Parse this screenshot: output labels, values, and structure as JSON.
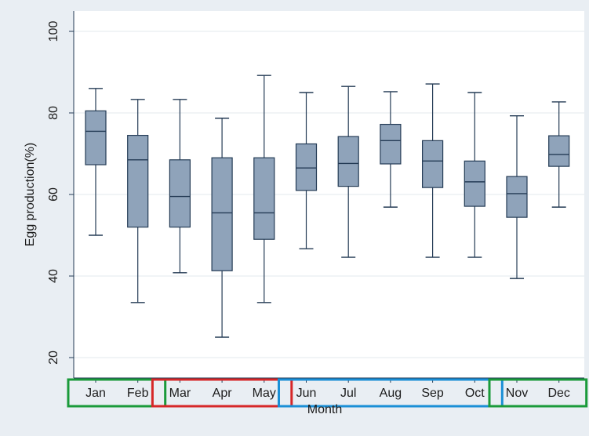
{
  "chart_data": {
    "type": "boxplot",
    "title": "",
    "xlabel": "Month",
    "ylabel": "Egg production(%)",
    "ylim": [
      15,
      105
    ],
    "yticks": [
      20,
      40,
      60,
      80,
      100
    ],
    "grid": true,
    "categories": [
      "Jan",
      "Feb",
      "Mar",
      "Apr",
      "May",
      "Jun",
      "Jul",
      "Aug",
      "Sep",
      "Oct",
      "Nov",
      "Dec"
    ],
    "boxes": [
      {
        "min": 50,
        "q1": 67.3,
        "median": 75.5,
        "q3": 80.5,
        "max": 86
      },
      {
        "min": 33.5,
        "q1": 52,
        "median": 68.5,
        "q3": 74.5,
        "max": 83.3
      },
      {
        "min": 40.8,
        "q1": 52,
        "median": 59.5,
        "q3": 68.5,
        "max": 83.3
      },
      {
        "min": 25,
        "q1": 41.3,
        "median": 55.5,
        "q3": 69,
        "max": 78.7
      },
      {
        "min": 33.5,
        "q1": 49,
        "median": 55.5,
        "q3": 69,
        "max": 89.2
      },
      {
        "min": 46.7,
        "q1": 61,
        "median": 66.5,
        "q3": 72.4,
        "max": 85
      },
      {
        "min": 44.6,
        "q1": 62,
        "median": 67.6,
        "q3": 74.2,
        "max": 86.5
      },
      {
        "min": 56.9,
        "q1": 67.5,
        "median": 73.2,
        "q3": 77.2,
        "max": 85.2
      },
      {
        "min": 44.6,
        "q1": 61.7,
        "median": 68.2,
        "q3": 73.2,
        "max": 87.1
      },
      {
        "min": 44.6,
        "q1": 57.1,
        "median": 63.1,
        "q3": 68.2,
        "max": 85
      },
      {
        "min": 39.4,
        "q1": 54.4,
        "median": 60.2,
        "q3": 64.4,
        "max": 79.3
      },
      {
        "min": 56.9,
        "q1": 66.9,
        "median": 69.8,
        "q3": 74.4,
        "max": 82.7
      }
    ],
    "groups": [
      {
        "months": [
          "Jan",
          "Feb"
        ],
        "color": "#1a9a3a"
      },
      {
        "months": [
          "Mar",
          "Apr",
          "May"
        ],
        "color": "#d62728"
      },
      {
        "months": [
          "Jun",
          "Jul",
          "Aug",
          "Sep",
          "Oct"
        ],
        "color": "#1a8fd6"
      },
      {
        "months": [
          "Nov",
          "Dec"
        ],
        "color": "#1a9a3a"
      }
    ],
    "colors": {
      "box_fill": "#8fa3ba",
      "box_stroke": "#243b55",
      "plot_background": "#ffffff",
      "outer_background": "#e9eef3",
      "grid": "#e3e8ee"
    }
  }
}
